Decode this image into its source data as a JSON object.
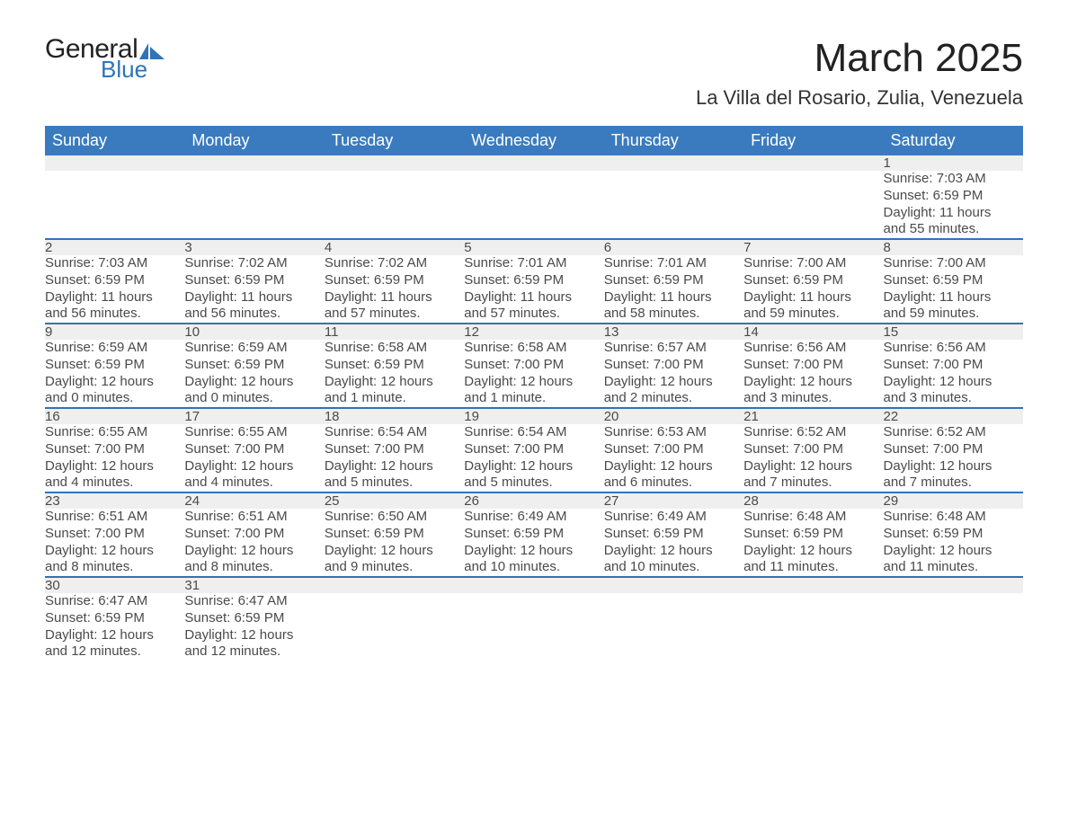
{
  "brand": {
    "word1": "General",
    "word2": "Blue",
    "shape_color": "#2f74b5"
  },
  "title": "March 2025",
  "location": "La Villa del Rosario, Zulia, Venezuela",
  "colors": {
    "header_bg": "#3a7bbf",
    "header_text": "#ffffff",
    "daynum_bg": "#efefef",
    "row_separator": "#2f74b5",
    "body_text": "#4a4a4a"
  },
  "typography": {
    "title_fontsize": 44,
    "location_fontsize": 22,
    "header_fontsize": 18,
    "daynum_fontsize": 18,
    "body_fontsize": 15,
    "font_family": "Arial"
  },
  "weekdays": [
    "Sunday",
    "Monday",
    "Tuesday",
    "Wednesday",
    "Thursday",
    "Friday",
    "Saturday"
  ],
  "weeks": [
    [
      null,
      null,
      null,
      null,
      null,
      null,
      {
        "n": "1",
        "sunrise": "Sunrise: 7:03 AM",
        "sunset": "Sunset: 6:59 PM",
        "d1": "Daylight: 11 hours",
        "d2": "and 55 minutes."
      }
    ],
    [
      {
        "n": "2",
        "sunrise": "Sunrise: 7:03 AM",
        "sunset": "Sunset: 6:59 PM",
        "d1": "Daylight: 11 hours",
        "d2": "and 56 minutes."
      },
      {
        "n": "3",
        "sunrise": "Sunrise: 7:02 AM",
        "sunset": "Sunset: 6:59 PM",
        "d1": "Daylight: 11 hours",
        "d2": "and 56 minutes."
      },
      {
        "n": "4",
        "sunrise": "Sunrise: 7:02 AM",
        "sunset": "Sunset: 6:59 PM",
        "d1": "Daylight: 11 hours",
        "d2": "and 57 minutes."
      },
      {
        "n": "5",
        "sunrise": "Sunrise: 7:01 AM",
        "sunset": "Sunset: 6:59 PM",
        "d1": "Daylight: 11 hours",
        "d2": "and 57 minutes."
      },
      {
        "n": "6",
        "sunrise": "Sunrise: 7:01 AM",
        "sunset": "Sunset: 6:59 PM",
        "d1": "Daylight: 11 hours",
        "d2": "and 58 minutes."
      },
      {
        "n": "7",
        "sunrise": "Sunrise: 7:00 AM",
        "sunset": "Sunset: 6:59 PM",
        "d1": "Daylight: 11 hours",
        "d2": "and 59 minutes."
      },
      {
        "n": "8",
        "sunrise": "Sunrise: 7:00 AM",
        "sunset": "Sunset: 6:59 PM",
        "d1": "Daylight: 11 hours",
        "d2": "and 59 minutes."
      }
    ],
    [
      {
        "n": "9",
        "sunrise": "Sunrise: 6:59 AM",
        "sunset": "Sunset: 6:59 PM",
        "d1": "Daylight: 12 hours",
        "d2": "and 0 minutes."
      },
      {
        "n": "10",
        "sunrise": "Sunrise: 6:59 AM",
        "sunset": "Sunset: 6:59 PM",
        "d1": "Daylight: 12 hours",
        "d2": "and 0 minutes."
      },
      {
        "n": "11",
        "sunrise": "Sunrise: 6:58 AM",
        "sunset": "Sunset: 6:59 PM",
        "d1": "Daylight: 12 hours",
        "d2": "and 1 minute."
      },
      {
        "n": "12",
        "sunrise": "Sunrise: 6:58 AM",
        "sunset": "Sunset: 7:00 PM",
        "d1": "Daylight: 12 hours",
        "d2": "and 1 minute."
      },
      {
        "n": "13",
        "sunrise": "Sunrise: 6:57 AM",
        "sunset": "Sunset: 7:00 PM",
        "d1": "Daylight: 12 hours",
        "d2": "and 2 minutes."
      },
      {
        "n": "14",
        "sunrise": "Sunrise: 6:56 AM",
        "sunset": "Sunset: 7:00 PM",
        "d1": "Daylight: 12 hours",
        "d2": "and 3 minutes."
      },
      {
        "n": "15",
        "sunrise": "Sunrise: 6:56 AM",
        "sunset": "Sunset: 7:00 PM",
        "d1": "Daylight: 12 hours",
        "d2": "and 3 minutes."
      }
    ],
    [
      {
        "n": "16",
        "sunrise": "Sunrise: 6:55 AM",
        "sunset": "Sunset: 7:00 PM",
        "d1": "Daylight: 12 hours",
        "d2": "and 4 minutes."
      },
      {
        "n": "17",
        "sunrise": "Sunrise: 6:55 AM",
        "sunset": "Sunset: 7:00 PM",
        "d1": "Daylight: 12 hours",
        "d2": "and 4 minutes."
      },
      {
        "n": "18",
        "sunrise": "Sunrise: 6:54 AM",
        "sunset": "Sunset: 7:00 PM",
        "d1": "Daylight: 12 hours",
        "d2": "and 5 minutes."
      },
      {
        "n": "19",
        "sunrise": "Sunrise: 6:54 AM",
        "sunset": "Sunset: 7:00 PM",
        "d1": "Daylight: 12 hours",
        "d2": "and 5 minutes."
      },
      {
        "n": "20",
        "sunrise": "Sunrise: 6:53 AM",
        "sunset": "Sunset: 7:00 PM",
        "d1": "Daylight: 12 hours",
        "d2": "and 6 minutes."
      },
      {
        "n": "21",
        "sunrise": "Sunrise: 6:52 AM",
        "sunset": "Sunset: 7:00 PM",
        "d1": "Daylight: 12 hours",
        "d2": "and 7 minutes."
      },
      {
        "n": "22",
        "sunrise": "Sunrise: 6:52 AM",
        "sunset": "Sunset: 7:00 PM",
        "d1": "Daylight: 12 hours",
        "d2": "and 7 minutes."
      }
    ],
    [
      {
        "n": "23",
        "sunrise": "Sunrise: 6:51 AM",
        "sunset": "Sunset: 7:00 PM",
        "d1": "Daylight: 12 hours",
        "d2": "and 8 minutes."
      },
      {
        "n": "24",
        "sunrise": "Sunrise: 6:51 AM",
        "sunset": "Sunset: 7:00 PM",
        "d1": "Daylight: 12 hours",
        "d2": "and 8 minutes."
      },
      {
        "n": "25",
        "sunrise": "Sunrise: 6:50 AM",
        "sunset": "Sunset: 6:59 PM",
        "d1": "Daylight: 12 hours",
        "d2": "and 9 minutes."
      },
      {
        "n": "26",
        "sunrise": "Sunrise: 6:49 AM",
        "sunset": "Sunset: 6:59 PM",
        "d1": "Daylight: 12 hours",
        "d2": "and 10 minutes."
      },
      {
        "n": "27",
        "sunrise": "Sunrise: 6:49 AM",
        "sunset": "Sunset: 6:59 PM",
        "d1": "Daylight: 12 hours",
        "d2": "and 10 minutes."
      },
      {
        "n": "28",
        "sunrise": "Sunrise: 6:48 AM",
        "sunset": "Sunset: 6:59 PM",
        "d1": "Daylight: 12 hours",
        "d2": "and 11 minutes."
      },
      {
        "n": "29",
        "sunrise": "Sunrise: 6:48 AM",
        "sunset": "Sunset: 6:59 PM",
        "d1": "Daylight: 12 hours",
        "d2": "and 11 minutes."
      }
    ],
    [
      {
        "n": "30",
        "sunrise": "Sunrise: 6:47 AM",
        "sunset": "Sunset: 6:59 PM",
        "d1": "Daylight: 12 hours",
        "d2": "and 12 minutes."
      },
      {
        "n": "31",
        "sunrise": "Sunrise: 6:47 AM",
        "sunset": "Sunset: 6:59 PM",
        "d1": "Daylight: 12 hours",
        "d2": "and 12 minutes."
      },
      null,
      null,
      null,
      null,
      null
    ]
  ]
}
